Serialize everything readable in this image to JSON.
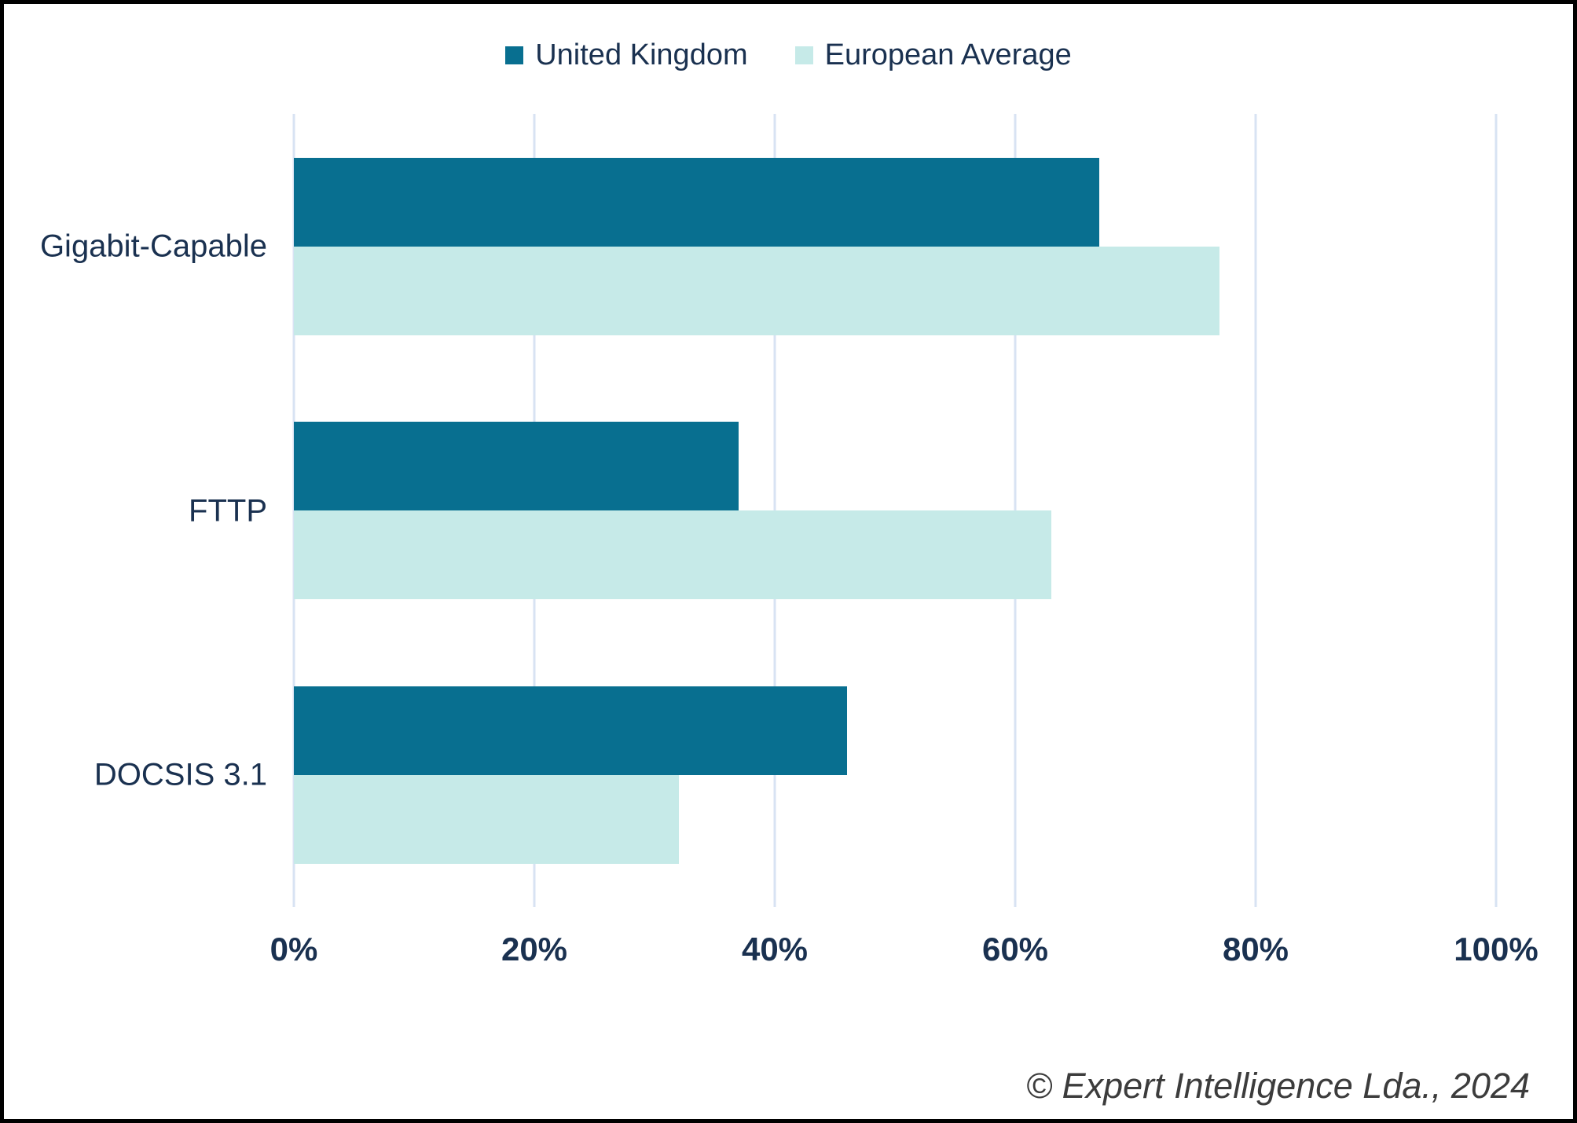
{
  "chart_data": {
    "type": "bar",
    "orientation": "horizontal",
    "title": "",
    "xlabel": "",
    "ylabel": "",
    "categories": [
      "Gigabit-Capable",
      "FTTP",
      "DOCSIS 3.1"
    ],
    "series": [
      {
        "name": "United Kingdom",
        "color": "#086F90",
        "values": [
          67,
          37,
          46
        ]
      },
      {
        "name": "European Average",
        "color": "#C6EAE8",
        "values": [
          77,
          63,
          32
        ]
      }
    ],
    "x_ticks": [
      "0%",
      "20%",
      "40%",
      "60%",
      "80%",
      "100%"
    ],
    "xlim": [
      0,
      100
    ],
    "grid": true,
    "gridline_color": "#D8E3F3",
    "legend_position": "top",
    "text_color": "#1A3150"
  },
  "footer": {
    "attribution": "© Expert Intelligence Lda., 2024"
  }
}
